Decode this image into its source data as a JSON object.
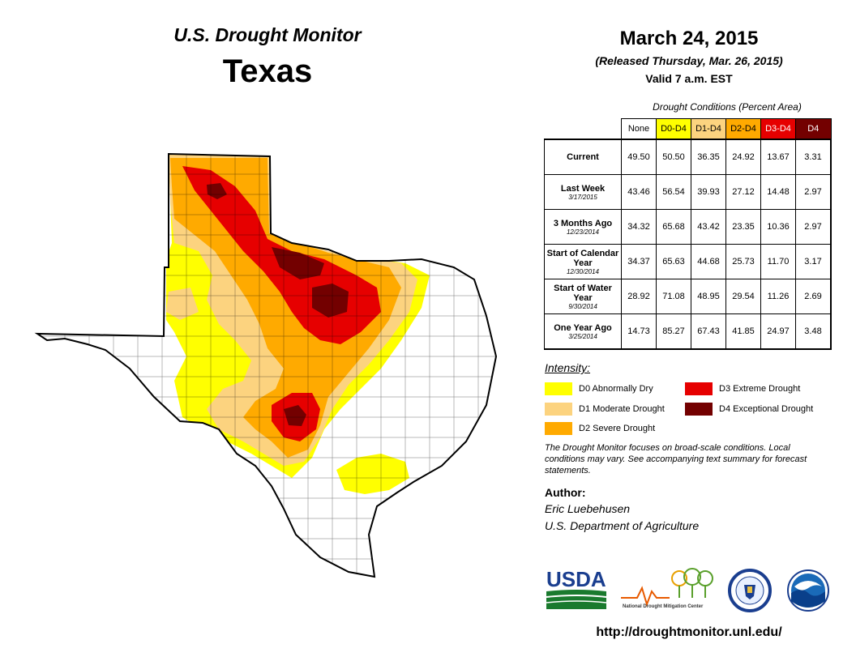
{
  "header": {
    "monitor_title": "U.S. Drought Monitor",
    "state_name": "Texas",
    "date": "March 24, 2015",
    "released": "(Released Thursday, Mar. 26, 2015)",
    "valid": "Valid 7 a.m. EST"
  },
  "table": {
    "caption": "Drought Conditions (Percent Area)",
    "columns": [
      "None",
      "D0-D4",
      "D1-D4",
      "D2-D4",
      "D3-D4",
      "D4"
    ],
    "rows": [
      {
        "label": "Current",
        "sub": "",
        "values": [
          "49.50",
          "50.50",
          "36.35",
          "24.92",
          "13.67",
          "3.31"
        ]
      },
      {
        "label": "Last Week",
        "sub": "3/17/2015",
        "values": [
          "43.46",
          "56.54",
          "39.93",
          "27.12",
          "14.48",
          "2.97"
        ]
      },
      {
        "label": "3 Months Ago",
        "sub": "12/23/2014",
        "values": [
          "34.32",
          "65.68",
          "43.42",
          "23.35",
          "10.36",
          "2.97"
        ]
      },
      {
        "label": "Start of Calendar Year",
        "sub": "12/30/2014",
        "values": [
          "34.37",
          "65.63",
          "44.68",
          "25.73",
          "11.70",
          "3.17"
        ]
      },
      {
        "label": "Start of Water Year",
        "sub": "9/30/2014",
        "values": [
          "28.92",
          "71.08",
          "48.95",
          "29.54",
          "11.26",
          "2.69"
        ]
      },
      {
        "label": "One Year Ago",
        "sub": "3/25/2014",
        "values": [
          "14.73",
          "85.27",
          "67.43",
          "41.85",
          "24.97",
          "3.48"
        ]
      }
    ]
  },
  "legend": {
    "title": "Intensity:",
    "items": [
      {
        "label": "D0 Abnormally Dry",
        "color": "#ffff00"
      },
      {
        "label": "D1 Moderate Drought",
        "color": "#fcd37f"
      },
      {
        "label": "D2 Severe Drought",
        "color": "#ffaa00"
      },
      {
        "label": "D3 Extreme Drought",
        "color": "#e60000"
      },
      {
        "label": "D4 Exceptional Drought",
        "color": "#730000"
      }
    ]
  },
  "note": "The Drought Monitor focuses on broad-scale conditions. Local conditions may vary. See accompanying text summary for forecast statements.",
  "author": {
    "heading": "Author:",
    "name": "Eric Luebehusen",
    "org": "U.S. Department of Agriculture"
  },
  "logos": {
    "usda": "USDA",
    "ndmc": "National Drought Mitigation Center",
    "noaa": "NOAA"
  },
  "url": "http://droughtmonitor.unl.edu/",
  "colors": {
    "none": "#ffffff",
    "d0": "#ffff00",
    "d1": "#fcd37f",
    "d2": "#ffaa00",
    "d3": "#e60000",
    "d4": "#730000"
  }
}
